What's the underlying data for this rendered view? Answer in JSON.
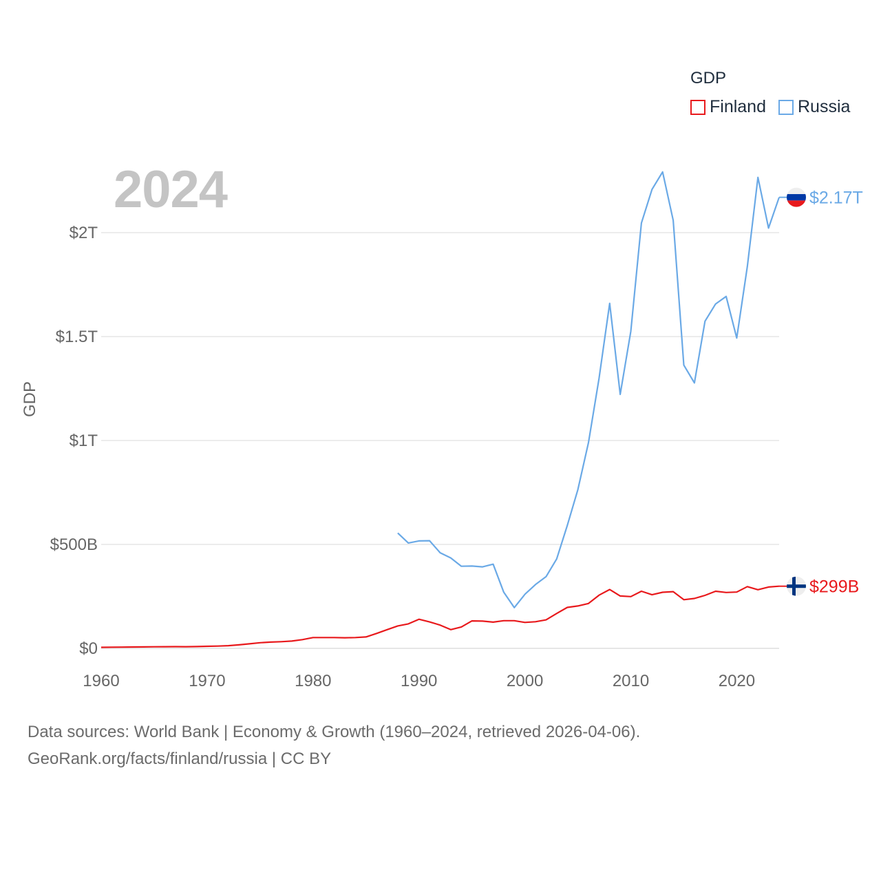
{
  "legend": {
    "title": "GDP",
    "items": [
      {
        "label": "Finland",
        "color": "#e8191c"
      },
      {
        "label": "Russia",
        "color": "#6aa9e6"
      }
    ]
  },
  "year_label": "2024",
  "footer": {
    "line1": "Data sources: World Bank | Economy & Growth (1960–2024, retrieved 2026-04-06).",
    "line2": "GeoRank.org/facts/finland/russia | CC BY"
  },
  "chart_data": {
    "type": "line",
    "title": "GDP",
    "xlabel": "",
    "ylabel": "GDP",
    "xlim": [
      1960,
      2024
    ],
    "ylim": [
      0,
      2300
    ],
    "x_ticks": [
      1960,
      1970,
      1980,
      1990,
      2000,
      2010,
      2020
    ],
    "x_tick_labels": [
      "1960",
      "1970",
      "1980",
      "1990",
      "2000",
      "2010",
      "2020"
    ],
    "y_ticks": [
      0,
      500,
      1000,
      1500,
      2000
    ],
    "y_tick_labels": [
      "$0",
      "$500B",
      "$1T",
      "$1.5T",
      "$2T"
    ],
    "units": "billions of US dollars",
    "series": [
      {
        "name": "Finland",
        "color": "#e8191c",
        "end_label": "$299B",
        "flag": "finland",
        "x": [
          1960,
          1961,
          1962,
          1963,
          1964,
          1965,
          1966,
          1967,
          1968,
          1969,
          1970,
          1971,
          1972,
          1973,
          1974,
          1975,
          1976,
          1977,
          1978,
          1979,
          1980,
          1981,
          1982,
          1983,
          1984,
          1985,
          1986,
          1987,
          1988,
          1989,
          1990,
          1991,
          1992,
          1993,
          1994,
          1995,
          1996,
          1997,
          1998,
          1999,
          2000,
          2001,
          2002,
          2003,
          2004,
          2005,
          2006,
          2007,
          2008,
          2009,
          2010,
          2011,
          2012,
          2013,
          2014,
          2015,
          2016,
          2017,
          2018,
          2019,
          2020,
          2021,
          2022,
          2023,
          2024
        ],
        "values": [
          5,
          5.5,
          6,
          6.5,
          7,
          7.5,
          8,
          8.3,
          8,
          8.5,
          10,
          11,
          13,
          17,
          22,
          27,
          30,
          32,
          35,
          42,
          52,
          52,
          52,
          51,
          52,
          55,
          72,
          90,
          108,
          118,
          140,
          127,
          112,
          90,
          103,
          132,
          131,
          126,
          133,
          133,
          125,
          128,
          137,
          168,
          197,
          204,
          216,
          256,
          283,
          252,
          249,
          275,
          258,
          270,
          273,
          234,
          240,
          255,
          275,
          269,
          271,
          297,
          282,
          295,
          299
        ]
      },
      {
        "name": "Russia",
        "color": "#6aa9e6",
        "end_label": "$2.17T",
        "flag": "russia",
        "x": [
          1988,
          1989,
          1990,
          1991,
          1992,
          1993,
          1994,
          1995,
          1996,
          1997,
          1998,
          1999,
          2000,
          2001,
          2002,
          2003,
          2004,
          2005,
          2006,
          2007,
          2008,
          2009,
          2010,
          2011,
          2012,
          2013,
          2014,
          2015,
          2016,
          2017,
          2018,
          2019,
          2020,
          2021,
          2022,
          2023,
          2024
        ],
        "values": [
          555,
          507,
          517,
          518,
          460,
          435,
          395,
          396,
          392,
          405,
          271,
          196,
          260,
          307,
          345,
          430,
          591,
          764,
          990,
          1300,
          1660,
          1222,
          1525,
          2046,
          2208,
          2292,
          2059,
          1363,
          1277,
          1574,
          1657,
          1693,
          1493,
          1837,
          2266,
          2022,
          2170
        ]
      }
    ]
  }
}
